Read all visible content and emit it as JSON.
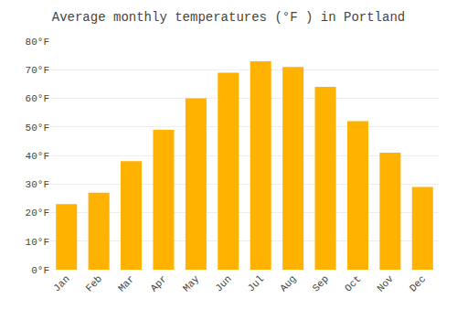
{
  "chart_data": {
    "type": "bar",
    "title": "Average monthly temperatures (°F ) in Portland",
    "categories": [
      "Jan",
      "Feb",
      "Mar",
      "Apr",
      "May",
      "Jun",
      "Jul",
      "Aug",
      "Sep",
      "Oct",
      "Nov",
      "Dec"
    ],
    "values": [
      23,
      27,
      38,
      49,
      60,
      69,
      73,
      71,
      64,
      52,
      41,
      29
    ],
    "color": "#FFB300",
    "ylim": [
      0,
      80
    ],
    "yticks": [
      {
        "value": 0,
        "label": "0°F"
      },
      {
        "value": 10,
        "label": "10°F"
      },
      {
        "value": 20,
        "label": "20°F"
      },
      {
        "value": 30,
        "label": "30°F"
      },
      {
        "value": 40,
        "label": "40°F"
      },
      {
        "value": 50,
        "label": "50°F"
      },
      {
        "value": 60,
        "label": "60°F"
      },
      {
        "value": 70,
        "label": "70°F"
      },
      {
        "value": 80,
        "label": "80°F"
      }
    ],
    "grid": true
  }
}
